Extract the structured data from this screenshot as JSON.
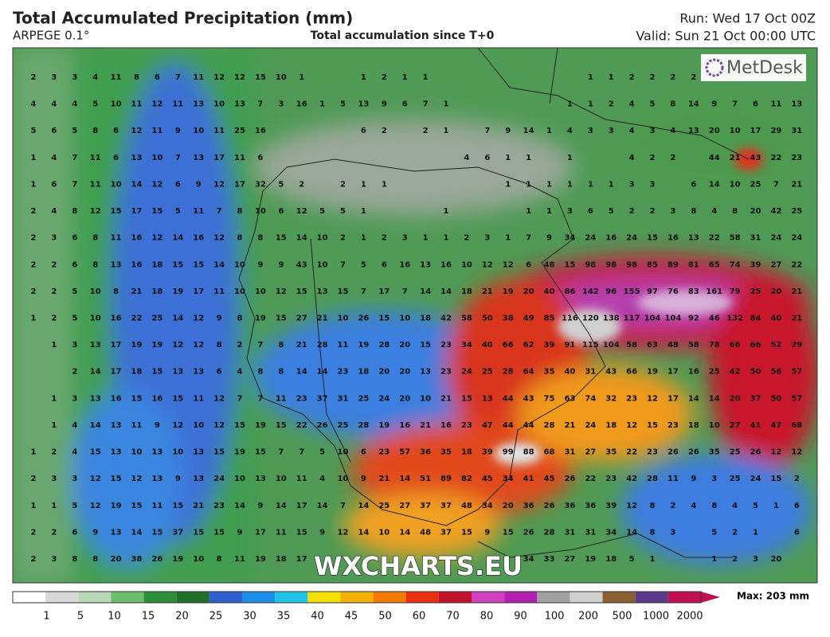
{
  "header": {
    "title": "Total Accumulated Precipitation (mm)",
    "model": "ARPEGE 0.1°",
    "subtitle": "Total accumulation since T+0",
    "run": "Run: Wed 17 Oct 00Z",
    "valid": "Valid: Sun 21 Oct 00:00 UTC"
  },
  "logo": "MetDesk",
  "watermark": "WXCHARTS.EU",
  "grid": {
    "rows": [
      [
        2,
        3,
        3,
        4,
        11,
        8,
        6,
        7,
        11,
        12,
        12,
        15,
        10,
        1,
        null,
        null,
        1,
        2,
        1,
        1,
        null,
        null,
        null,
        null,
        null,
        null,
        null,
        1,
        1,
        2,
        2,
        2,
        2,
        null,
        null,
        null,
        null,
        null
      ],
      [
        4,
        4,
        4,
        5,
        10,
        11,
        12,
        11,
        13,
        10,
        13,
        7,
        3,
        16,
        1,
        5,
        13,
        9,
        6,
        7,
        1,
        null,
        null,
        null,
        null,
        null,
        1,
        1,
        2,
        4,
        5,
        8,
        14,
        9,
        7,
        6,
        11,
        13
      ],
      [
        5,
        6,
        5,
        8,
        6,
        12,
        11,
        9,
        10,
        11,
        25,
        16,
        null,
        null,
        null,
        null,
        6,
        2,
        null,
        2,
        1,
        null,
        7,
        9,
        14,
        1,
        4,
        3,
        3,
        4,
        3,
        4,
        13,
        20,
        10,
        17,
        29,
        31
      ],
      [
        1,
        4,
        7,
        11,
        6,
        13,
        10,
        7,
        13,
        17,
        11,
        6,
        null,
        null,
        null,
        null,
        null,
        null,
        null,
        null,
        null,
        4,
        6,
        1,
        1,
        null,
        1,
        null,
        null,
        4,
        2,
        2,
        null,
        44,
        21,
        43,
        22,
        23
      ],
      [
        1,
        6,
        7,
        11,
        10,
        14,
        12,
        6,
        9,
        12,
        17,
        32,
        5,
        2,
        null,
        2,
        1,
        1,
        null,
        null,
        null,
        null,
        null,
        1,
        1,
        1,
        1,
        1,
        1,
        3,
        3,
        null,
        6,
        14,
        10,
        25,
        7,
        21
      ],
      [
        2,
        4,
        8,
        12,
        15,
        17,
        15,
        5,
        11,
        7,
        8,
        10,
        6,
        12,
        5,
        5,
        1,
        null,
        null,
        null,
        1,
        null,
        null,
        null,
        1,
        1,
        3,
        6,
        5,
        2,
        2,
        3,
        8,
        4,
        8,
        20,
        42,
        25
      ],
      [
        2,
        3,
        6,
        8,
        11,
        16,
        12,
        14,
        16,
        12,
        8,
        8,
        15,
        14,
        10,
        2,
        1,
        2,
        3,
        1,
        1,
        2,
        3,
        1,
        7,
        9,
        34,
        24,
        16,
        24,
        15,
        16,
        13,
        22,
        58,
        31,
        24,
        24
      ],
      [
        2,
        2,
        6,
        8,
        13,
        16,
        18,
        15,
        15,
        14,
        10,
        9,
        9,
        43,
        10,
        7,
        5,
        6,
        16,
        13,
        16,
        10,
        12,
        12,
        6,
        48,
        15,
        98,
        98,
        98,
        85,
        89,
        81,
        65,
        74,
        39,
        27,
        22
      ],
      [
        2,
        2,
        5,
        10,
        8,
        21,
        18,
        19,
        17,
        11,
        10,
        10,
        12,
        15,
        13,
        15,
        7,
        17,
        7,
        14,
        14,
        18,
        21,
        19,
        20,
        40,
        86,
        142,
        96,
        155,
        97,
        76,
        83,
        161,
        79,
        25,
        20,
        21
      ],
      [
        1,
        2,
        5,
        10,
        16,
        22,
        25,
        14,
        12,
        9,
        8,
        19,
        15,
        27,
        21,
        10,
        26,
        15,
        10,
        18,
        42,
        58,
        50,
        38,
        49,
        85,
        116,
        120,
        138,
        117,
        104,
        104,
        92,
        46,
        132,
        84,
        40,
        21
      ],
      [
        null,
        1,
        3,
        13,
        17,
        19,
        19,
        12,
        12,
        8,
        2,
        7,
        8,
        21,
        28,
        11,
        19,
        28,
        20,
        15,
        23,
        34,
        40,
        66,
        62,
        39,
        91,
        115,
        104,
        58,
        63,
        48,
        58,
        78,
        66,
        66,
        52,
        29
      ],
      [
        null,
        null,
        2,
        14,
        17,
        18,
        15,
        13,
        13,
        6,
        4,
        8,
        8,
        14,
        14,
        23,
        18,
        20,
        20,
        13,
        23,
        24,
        25,
        28,
        64,
        35,
        40,
        31,
        43,
        66,
        19,
        17,
        16,
        25,
        42,
        50,
        56,
        57
      ],
      [
        null,
        1,
        3,
        13,
        16,
        15,
        16,
        15,
        11,
        12,
        7,
        7,
        11,
        23,
        37,
        31,
        25,
        24,
        20,
        10,
        21,
        15,
        13,
        44,
        43,
        75,
        63,
        74,
        32,
        23,
        12,
        17,
        14,
        14,
        20,
        37,
        50,
        57
      ],
      [
        null,
        1,
        4,
        14,
        13,
        11,
        9,
        12,
        10,
        12,
        15,
        19,
        15,
        22,
        26,
        25,
        28,
        19,
        16,
        21,
        16,
        23,
        47,
        44,
        44,
        28,
        21,
        24,
        18,
        12,
        15,
        23,
        18,
        10,
        27,
        41,
        47,
        68
      ],
      [
        1,
        2,
        4,
        15,
        13,
        10,
        13,
        10,
        13,
        15,
        19,
        15,
        7,
        7,
        5,
        10,
        6,
        23,
        57,
        36,
        35,
        18,
        39,
        99,
        88,
        68,
        31,
        27,
        35,
        22,
        23,
        26,
        26,
        35,
        25,
        26,
        12,
        12
      ],
      [
        2,
        3,
        3,
        12,
        15,
        12,
        13,
        9,
        13,
        24,
        10,
        13,
        10,
        11,
        4,
        10,
        9,
        21,
        14,
        51,
        89,
        82,
        45,
        34,
        41,
        45,
        26,
        22,
        23,
        42,
        28,
        11,
        9,
        3,
        25,
        24,
        15,
        2
      ],
      [
        1,
        1,
        5,
        12,
        19,
        15,
        11,
        15,
        21,
        23,
        14,
        9,
        14,
        17,
        14,
        7,
        14,
        25,
        27,
        37,
        37,
        48,
        34,
        20,
        36,
        26,
        36,
        36,
        39,
        12,
        8,
        2,
        4,
        8,
        4,
        5,
        1,
        6
      ],
      [
        2,
        2,
        6,
        9,
        13,
        14,
        15,
        37,
        15,
        15,
        9,
        17,
        11,
        15,
        9,
        12,
        14,
        10,
        14,
        48,
        37,
        15,
        9,
        15,
        26,
        28,
        31,
        31,
        34,
        14,
        8,
        3,
        null,
        5,
        2,
        1,
        null,
        6
      ],
      [
        2,
        3,
        8,
        8,
        20,
        38,
        26,
        19,
        10,
        8,
        11,
        19,
        18,
        17,
        null,
        null,
        null,
        null,
        null,
        null,
        null,
        null,
        null,
        null,
        34,
        33,
        27,
        19,
        18,
        5,
        1,
        null,
        null,
        1,
        2,
        3,
        20,
        null
      ]
    ]
  },
  "legend": {
    "labels": [
      1,
      5,
      10,
      15,
      20,
      25,
      30,
      35,
      40,
      45,
      50,
      60,
      70,
      80,
      90,
      100,
      200,
      500,
      1000,
      2000
    ],
    "max": "Max: 203 mm"
  }
}
